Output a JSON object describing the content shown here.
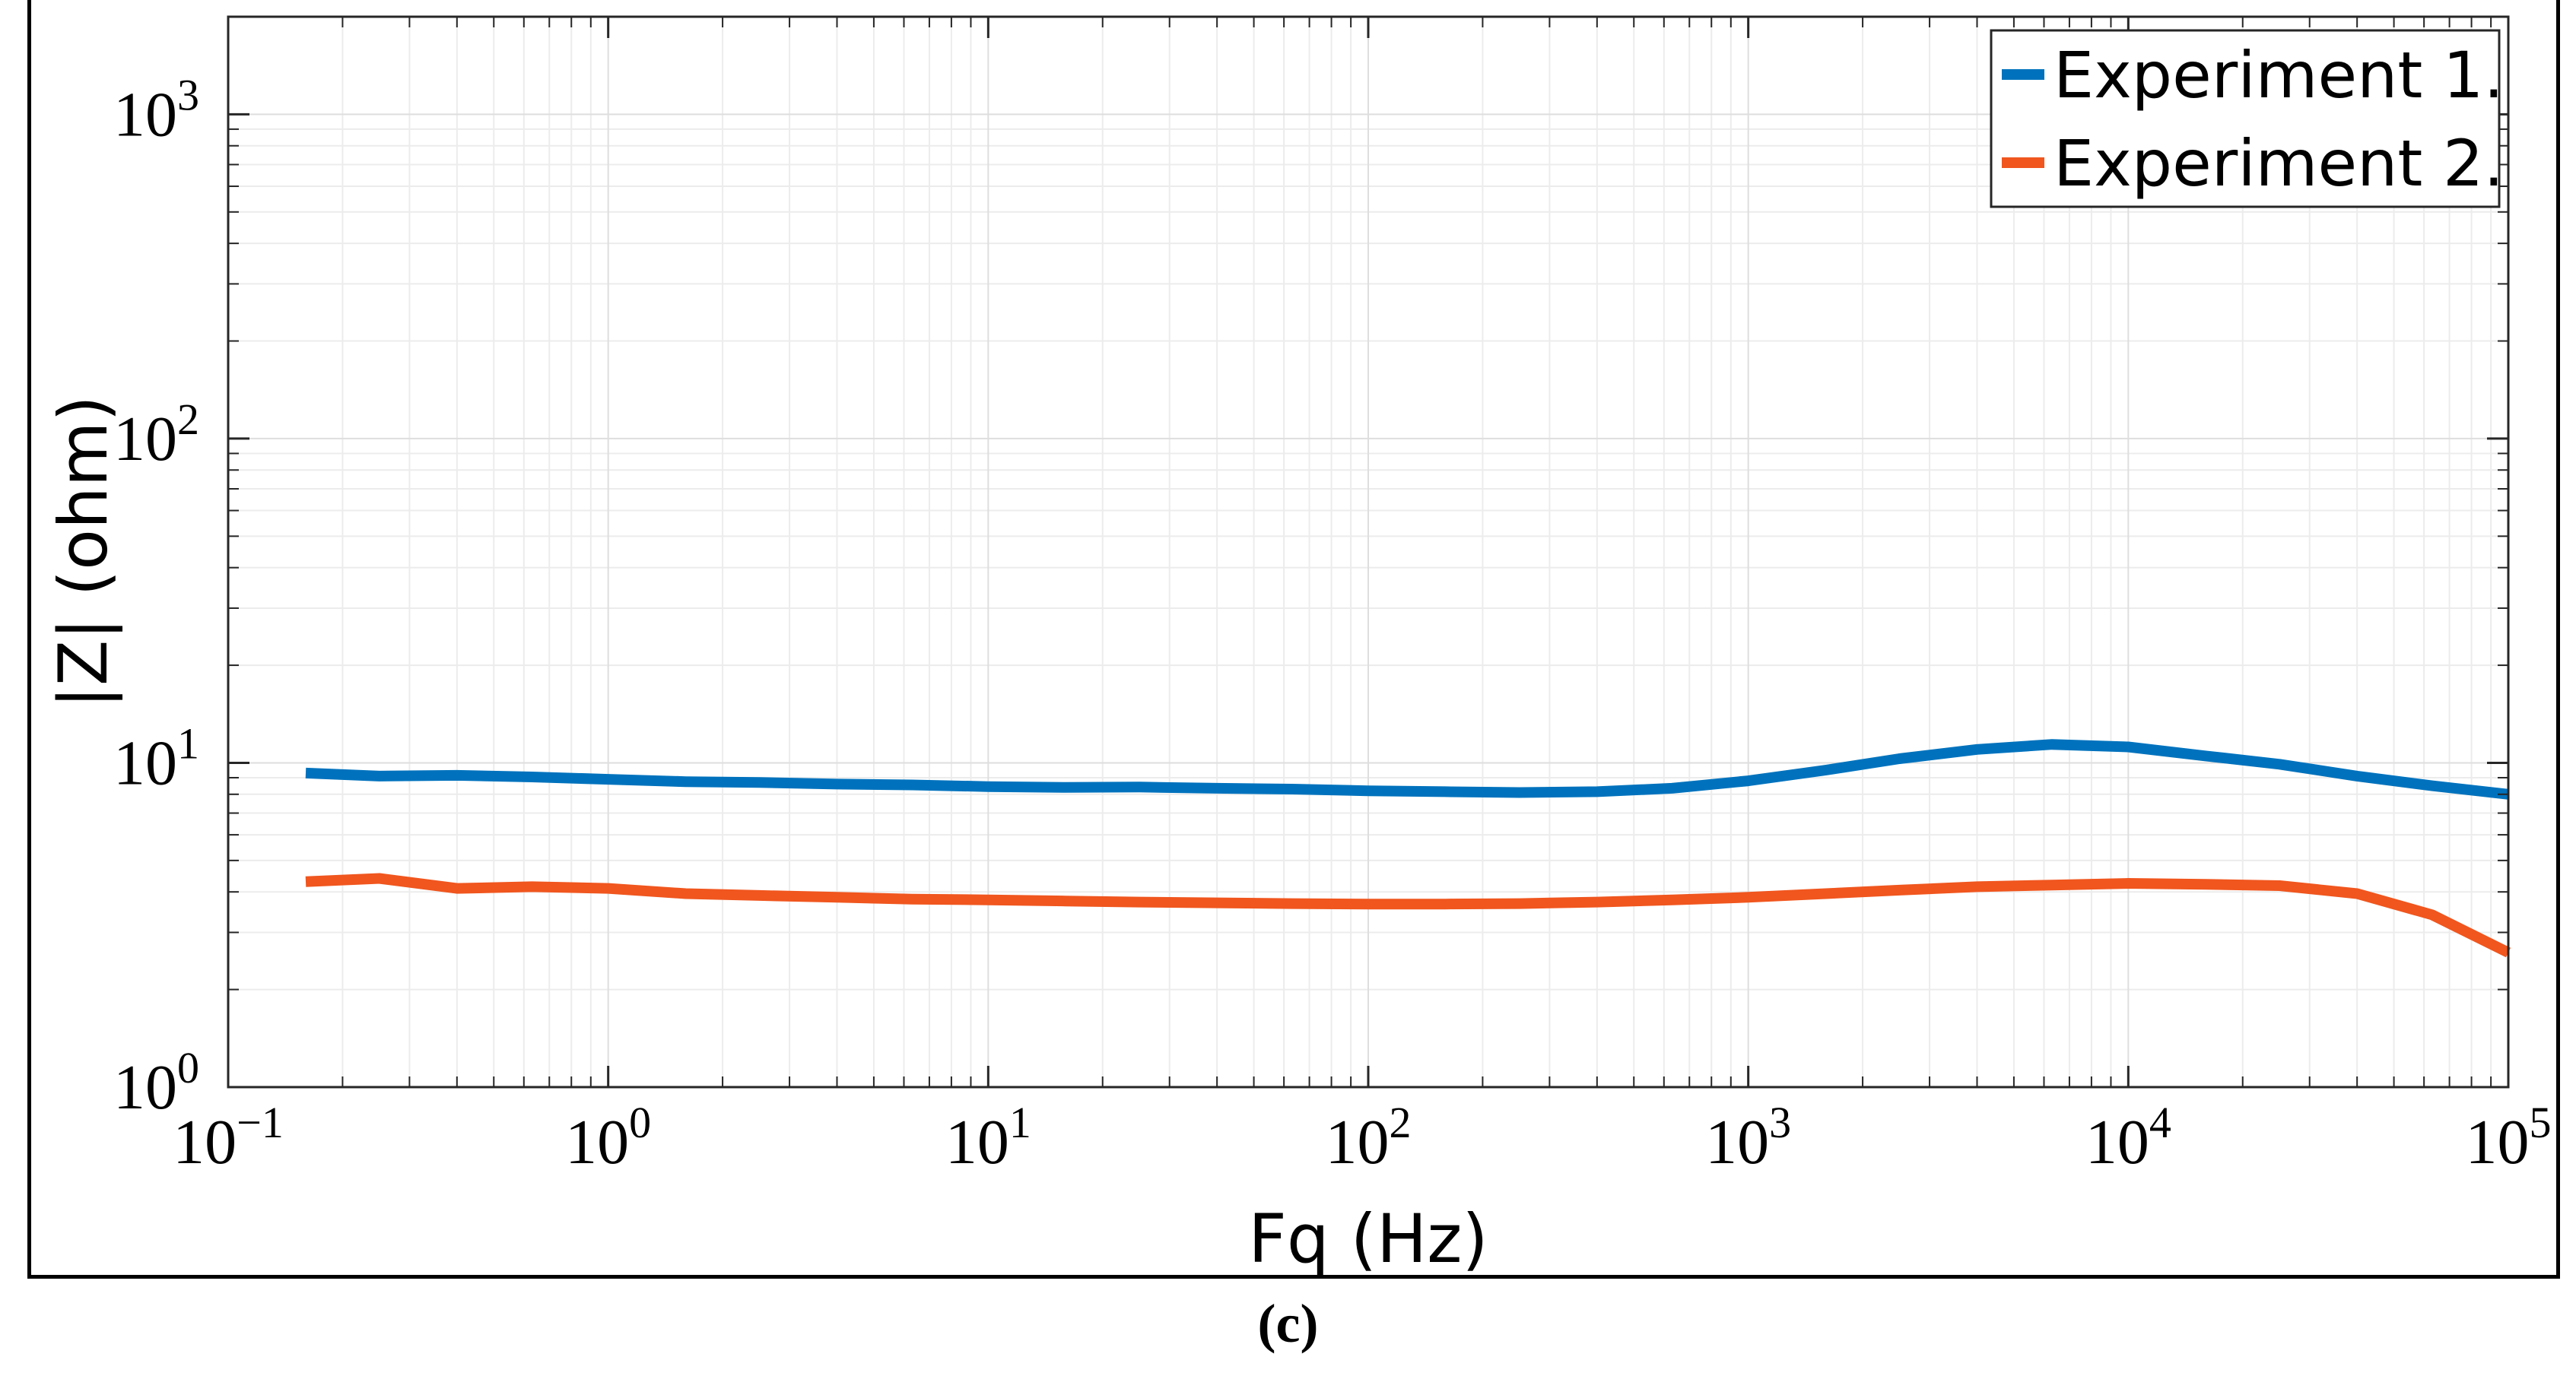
{
  "chart_data": {
    "type": "line",
    "xscale": "log",
    "yscale": "log",
    "xlim": [
      0.1,
      100000
    ],
    "ylim": [
      1,
      2000
    ],
    "xlabel": "Fq (Hz)",
    "ylabel": "|Z| (ohm)",
    "x_ticks": [
      {
        "base": "10",
        "exp": "−1"
      },
      {
        "base": "10",
        "exp": "0"
      },
      {
        "base": "10",
        "exp": "1"
      },
      {
        "base": "10",
        "exp": "2"
      },
      {
        "base": "10",
        "exp": "3"
      },
      {
        "base": "10",
        "exp": "4"
      },
      {
        "base": "10",
        "exp": "5"
      }
    ],
    "y_ticks": [
      {
        "base": "10",
        "exp": "0"
      },
      {
        "base": "10",
        "exp": "1"
      },
      {
        "base": "10",
        "exp": "2"
      },
      {
        "base": "10",
        "exp": "3"
      }
    ],
    "grid": true,
    "legend_position": "top-right",
    "series": [
      {
        "name": "Experiment 1.",
        "color": "#0072bd",
        "points": [
          [
            0.16,
            9.3
          ],
          [
            0.25,
            9.1
          ],
          [
            0.4,
            9.15
          ],
          [
            0.63,
            9.05
          ],
          [
            1,
            8.9
          ],
          [
            1.6,
            8.75
          ],
          [
            2.5,
            8.7
          ],
          [
            4,
            8.6
          ],
          [
            6.3,
            8.55
          ],
          [
            10,
            8.45
          ],
          [
            16,
            8.4
          ],
          [
            25,
            8.42
          ],
          [
            40,
            8.35
          ],
          [
            63,
            8.3
          ],
          [
            100,
            8.2
          ],
          [
            160,
            8.15
          ],
          [
            250,
            8.1
          ],
          [
            400,
            8.15
          ],
          [
            630,
            8.35
          ],
          [
            1000,
            8.8
          ],
          [
            1600,
            9.5
          ],
          [
            2500,
            10.3
          ],
          [
            4000,
            11.0
          ],
          [
            6300,
            11.4
          ],
          [
            10000,
            11.2
          ],
          [
            16000,
            10.5
          ],
          [
            25000,
            9.9
          ],
          [
            40000,
            9.1
          ],
          [
            63000,
            8.5
          ],
          [
            100000,
            8.0
          ]
        ]
      },
      {
        "name": "Experiment 2.",
        "color": "#f0561e",
        "points": [
          [
            0.16,
            4.3
          ],
          [
            0.25,
            4.4
          ],
          [
            0.4,
            4.1
          ],
          [
            0.63,
            4.15
          ],
          [
            1,
            4.1
          ],
          [
            1.6,
            3.95
          ],
          [
            2.5,
            3.9
          ],
          [
            4,
            3.85
          ],
          [
            6.3,
            3.8
          ],
          [
            10,
            3.78
          ],
          [
            16,
            3.75
          ],
          [
            25,
            3.72
          ],
          [
            40,
            3.7
          ],
          [
            63,
            3.68
          ],
          [
            100,
            3.67
          ],
          [
            160,
            3.67
          ],
          [
            250,
            3.68
          ],
          [
            400,
            3.72
          ],
          [
            630,
            3.78
          ],
          [
            1000,
            3.85
          ],
          [
            1600,
            3.95
          ],
          [
            2500,
            4.05
          ],
          [
            4000,
            4.15
          ],
          [
            6300,
            4.2
          ],
          [
            10000,
            4.25
          ],
          [
            16000,
            4.22
          ],
          [
            25000,
            4.18
          ],
          [
            40000,
            3.95
          ],
          [
            63000,
            3.4
          ],
          [
            100000,
            2.6
          ]
        ]
      }
    ]
  },
  "caption": "(c)"
}
